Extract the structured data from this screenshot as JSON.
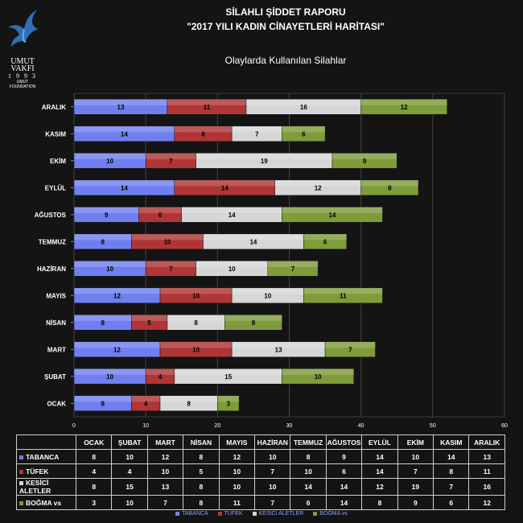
{
  "logo": {
    "line1": "UMUT",
    "line2": "VAKFI",
    "year": "1 9 9 3",
    "small1": "UMUT",
    "small2": "FOUNDATION"
  },
  "titles": {
    "line1": "SİLAHLI ŞİDDET RAPORU",
    "line2": "\"2017 YILI KADIN CİNAYETLERİ HARİTASI\""
  },
  "colors": {
    "TABANCA": "#6f7ff0",
    "TÜFEK": "#b03535",
    "KESİCİ ALETLER": "#d6d6d6",
    "BOĞMA vs": "#7e9c3a"
  },
  "chart_data": {
    "type": "bar",
    "orientation": "horizontal",
    "stacked": true,
    "title": "Olaylarda Kullanılan Silahlar",
    "categories": [
      "OCAK",
      "ŞUBAT",
      "MART",
      "NİSAN",
      "MAYIS",
      "HAZİRAN",
      "TEMMUZ",
      "AĞUSTOS",
      "EYLÜL",
      "EKİM",
      "KASIM",
      "ARALIK"
    ],
    "series": [
      {
        "name": "TABANCA",
        "values": [
          8,
          10,
          12,
          8,
          12,
          10,
          8,
          9,
          14,
          10,
          14,
          13
        ]
      },
      {
        "name": "TÜFEK",
        "values": [
          4,
          4,
          10,
          5,
          10,
          7,
          10,
          6,
          14,
          7,
          8,
          11
        ]
      },
      {
        "name": "KESİCİ ALETLER",
        "values": [
          8,
          15,
          13,
          8,
          10,
          10,
          14,
          14,
          12,
          19,
          7,
          16
        ]
      },
      {
        "name": "BOĞMA vs",
        "values": [
          3,
          10,
          7,
          8,
          11,
          7,
          6,
          14,
          8,
          9,
          6,
          12
        ]
      }
    ],
    "xlim": [
      0,
      60
    ],
    "xticks": [
      0,
      10,
      20,
      30,
      40,
      50,
      60
    ],
    "grid": true,
    "legend": "bottom"
  }
}
